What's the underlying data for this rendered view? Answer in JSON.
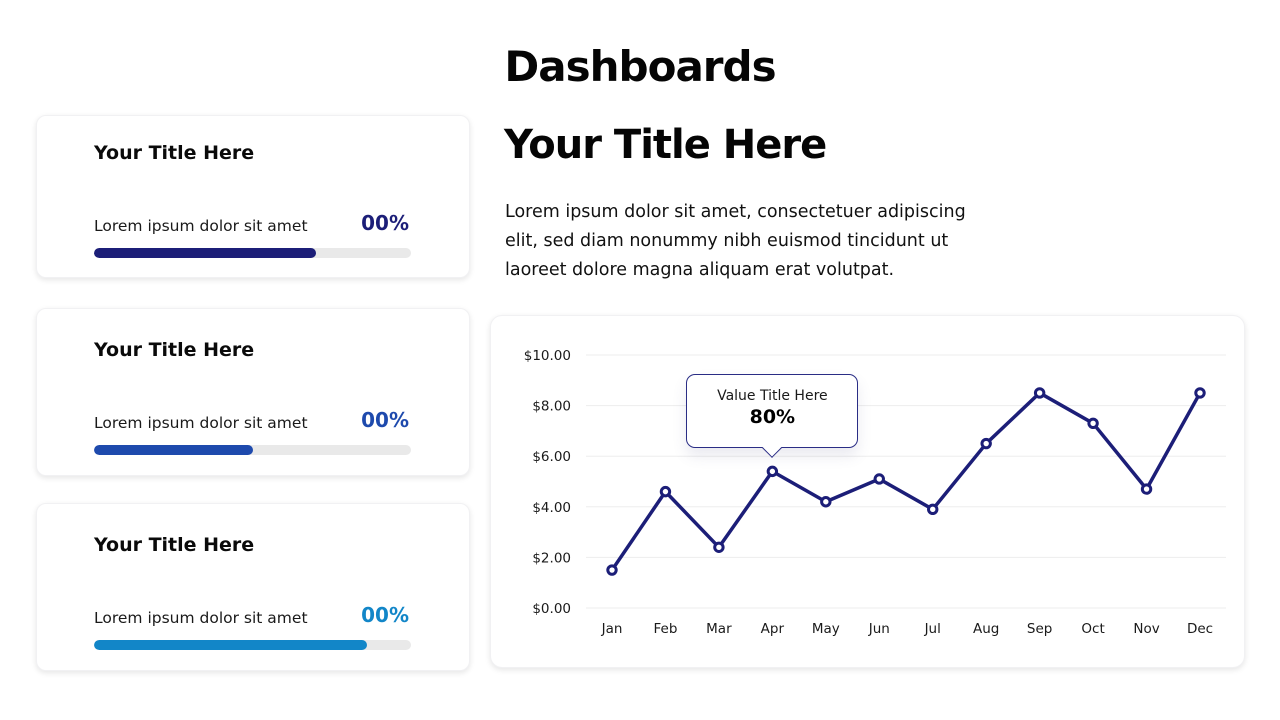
{
  "page": {
    "title": "Dashboards"
  },
  "colors": {
    "navy": "#1c1e78",
    "royal": "#1e4aad",
    "blue": "#1286c8",
    "track": "#e9e9e9",
    "grid": "#ededed",
    "tooltip_border": "#2a2d85"
  },
  "cards": [
    {
      "title": "Your Title Here",
      "label": "Lorem ipsum dolor sit amet",
      "value": "00%",
      "percent": 70,
      "color": "#1c1e78"
    },
    {
      "title": "Your Title Here",
      "label": "Lorem ipsum dolor sit amet",
      "value": "00%",
      "percent": 50,
      "color": "#1e4aad"
    },
    {
      "title": "Your Title Here",
      "label": "Lorem ipsum dolor sit amet",
      "value": "00%",
      "percent": 86,
      "color": "#1286c8"
    }
  ],
  "main": {
    "title": "Your Title Here",
    "paragraph": "Lorem ipsum dolor sit amet, consectetuer adipiscing elit, sed diam nonummy nibh euismod tincidunt ut laoreet dolore magna aliquam erat volutpat."
  },
  "chart_data": {
    "type": "line",
    "categories": [
      "Jan",
      "Feb",
      "Mar",
      "Apr",
      "May",
      "Jun",
      "Jul",
      "Aug",
      "Sep",
      "Oct",
      "Nov",
      "Dec"
    ],
    "values": [
      1.5,
      4.6,
      2.4,
      5.4,
      4.2,
      5.1,
      3.9,
      6.5,
      8.5,
      7.3,
      4.7,
      8.5
    ],
    "title": "",
    "xlabel": "",
    "ylabel": "",
    "ylim": [
      0,
      10
    ],
    "y_ticks": [
      {
        "value": 10,
        "label": "$10.00"
      },
      {
        "value": 8,
        "label": "$8.00"
      },
      {
        "value": 6,
        "label": "$6.00"
      },
      {
        "value": 4,
        "label": "$4.00"
      },
      {
        "value": 2,
        "label": "$2.00"
      },
      {
        "value": 0,
        "label": "$0.00"
      }
    ],
    "grid": true,
    "line_color": "#1c1e78",
    "tooltip": {
      "title": "Value Title Here",
      "value": "80%",
      "anchor_index": 3
    }
  }
}
